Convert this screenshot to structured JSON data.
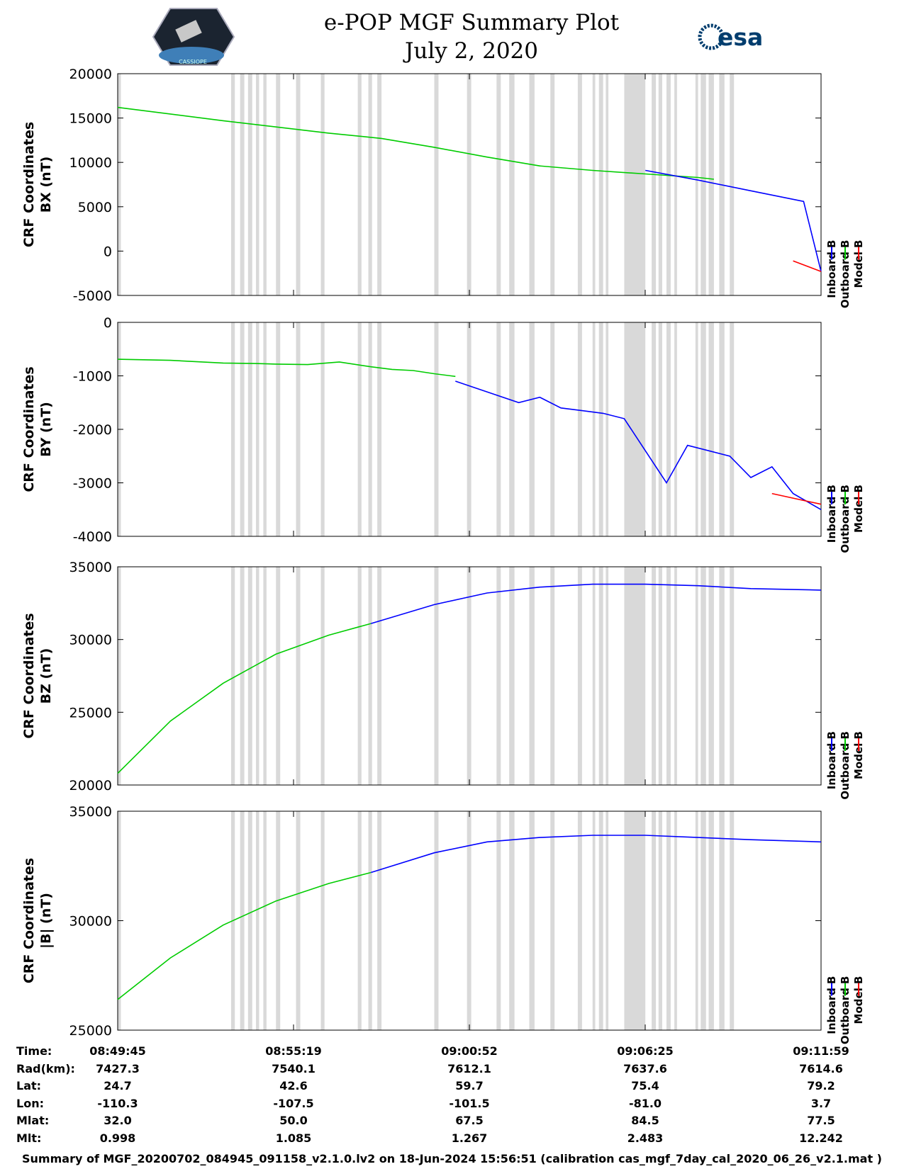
{
  "header": {
    "title": "e-POP MGF Summary Plot",
    "date": "July 2, 2020",
    "logo_right": "esa",
    "logo_left": "CASSIOPE"
  },
  "legend": {
    "items": [
      {
        "name": "Inboard B",
        "color": "#0000ff"
      },
      {
        "name": "Outboard B",
        "color": "#00cc00"
      },
      {
        "name": "Model B",
        "color": "#ff0000"
      }
    ]
  },
  "chart_data": [
    {
      "type": "line",
      "id": "bx",
      "ylabel": "CRF Coordinates",
      "ylabel2": "BX (nT)",
      "ylim": [
        -5000,
        20000
      ],
      "yticks": [
        20000,
        15000,
        10000,
        5000,
        0,
        -5000
      ],
      "xlim": [
        0,
        1333
      ],
      "series": [
        {
          "name": "Outboard B",
          "color": "#00cc00",
          "x": [
            0,
            200,
            400,
            500,
            600,
            700,
            800,
            900,
            1000,
            1050,
            1100,
            1130
          ],
          "y": [
            16200,
            14700,
            13300,
            12700,
            11700,
            10600,
            9600,
            9100,
            8700,
            8500,
            8300,
            8100
          ]
        },
        {
          "name": "Inboard B",
          "color": "#0000ff",
          "x": [
            1000,
            1100,
            1200,
            1300,
            1333
          ],
          "y": [
            9100,
            8000,
            6800,
            5600,
            -2300
          ]
        },
        {
          "name": "Model B",
          "color": "#ff0000",
          "x": [
            1280,
            1333
          ],
          "y": [
            -1100,
            -2300
          ]
        }
      ]
    },
    {
      "type": "line",
      "id": "by",
      "ylabel": "CRF Coordinates",
      "ylabel2": "BY (nT)",
      "ylim": [
        -4000,
        0
      ],
      "yticks": [
        0,
        -1000,
        -2000,
        -3000,
        -4000
      ],
      "xlim": [
        0,
        1333
      ],
      "series": [
        {
          "name": "Outboard B",
          "color": "#00cc00",
          "x": [
            0,
            100,
            200,
            260,
            300,
            360,
            420,
            480,
            520,
            560,
            600,
            640
          ],
          "y": [
            -690,
            -710,
            -760,
            -770,
            -780,
            -790,
            -740,
            -830,
            -880,
            -900,
            -960,
            -1010
          ]
        },
        {
          "name": "Inboard B",
          "color": "#0000ff",
          "x": [
            640,
            700,
            760,
            800,
            840,
            880,
            920,
            960,
            1000,
            1040,
            1080,
            1120,
            1160,
            1200,
            1240,
            1280,
            1333
          ],
          "y": [
            -1100,
            -1300,
            -1500,
            -1400,
            -1600,
            -1650,
            -1700,
            -1800,
            -2400,
            -3000,
            -2300,
            -2400,
            -2500,
            -2900,
            -2700,
            -3200,
            -3500
          ]
        },
        {
          "name": "Model B",
          "color": "#ff0000",
          "x": [
            1240,
            1333
          ],
          "y": [
            -3200,
            -3400
          ]
        }
      ]
    },
    {
      "type": "line",
      "id": "bz",
      "ylabel": "CRF Coordinates",
      "ylabel2": "BZ (nT)",
      "ylim": [
        20000,
        35000
      ],
      "yticks": [
        35000,
        30000,
        25000,
        20000
      ],
      "xlim": [
        0,
        1333
      ],
      "series": [
        {
          "name": "Outboard B",
          "color": "#00cc00",
          "x": [
            0,
            100,
            200,
            300,
            400,
            480
          ],
          "y": [
            20800,
            24400,
            27000,
            29000,
            30300,
            31100
          ]
        },
        {
          "name": "Inboard B",
          "color": "#0000ff",
          "x": [
            480,
            600,
            700,
            800,
            900,
            1000,
            1100,
            1200,
            1333
          ],
          "y": [
            31100,
            32400,
            33200,
            33600,
            33800,
            33800,
            33700,
            33500,
            33400
          ]
        }
      ]
    },
    {
      "type": "line",
      "id": "bmag",
      "ylabel": "CRF Coordinates",
      "ylabel2": "|B| (nT)",
      "ylim": [
        25000,
        35000
      ],
      "yticks": [
        35000,
        30000,
        25000
      ],
      "xlim": [
        0,
        1333
      ],
      "series": [
        {
          "name": "Outboard B",
          "color": "#00cc00",
          "x": [
            0,
            100,
            200,
            300,
            400,
            480
          ],
          "y": [
            26400,
            28300,
            29800,
            30900,
            31700,
            32200
          ]
        },
        {
          "name": "Inboard B",
          "color": "#0000ff",
          "x": [
            480,
            600,
            700,
            800,
            900,
            1000,
            1100,
            1200,
            1333
          ],
          "y": [
            32200,
            33100,
            33600,
            33800,
            33900,
            33900,
            33800,
            33700,
            33600
          ]
        }
      ]
    }
  ],
  "gaps": [
    [
      0,
      6
    ],
    [
      215,
      222
    ],
    [
      232,
      240
    ],
    [
      247,
      255
    ],
    [
      262,
      268
    ],
    [
      276,
      282
    ],
    [
      300,
      308
    ],
    [
      338,
      346
    ],
    [
      385,
      392
    ],
    [
      455,
      462
    ],
    [
      475,
      482
    ],
    [
      492,
      500
    ],
    [
      600,
      608
    ],
    [
      662,
      670
    ],
    [
      718,
      726
    ],
    [
      742,
      752
    ],
    [
      780,
      790
    ],
    [
      820,
      828
    ],
    [
      872,
      880
    ],
    [
      900,
      905
    ],
    [
      912,
      920
    ],
    [
      925,
      930
    ],
    [
      960,
      1000
    ],
    [
      1012,
      1020
    ],
    [
      1025,
      1032
    ],
    [
      1040,
      1048
    ],
    [
      1055,
      1060
    ],
    [
      1095,
      1100
    ],
    [
      1105,
      1115
    ],
    [
      1120,
      1130
    ],
    [
      1140,
      1150
    ],
    [
      1160,
      1168
    ]
  ],
  "orbit_table": {
    "row_labels": [
      "Time:",
      "Rad(km):",
      "Lat:",
      "Lon:",
      "Mlat:",
      "Mlt:"
    ],
    "columns": [
      {
        "values": [
          "08:49:45",
          "7427.3",
          "24.7",
          "-110.3",
          "32.0",
          "0.998"
        ]
      },
      {
        "values": [
          "08:55:19",
          "7540.1",
          "42.6",
          "-107.5",
          "50.0",
          "1.085"
        ]
      },
      {
        "values": [
          "09:00:52",
          "7612.1",
          "59.7",
          "-101.5",
          "67.5",
          "1.267"
        ]
      },
      {
        "values": [
          "09:06:25",
          "7637.6",
          "75.4",
          "-81.0",
          "84.5",
          "2.483"
        ]
      },
      {
        "values": [
          "09:11:59",
          "7614.6",
          "79.2",
          "3.7",
          "77.5",
          "12.242"
        ]
      }
    ]
  },
  "footer": "Summary of MGF_20200702_084945_091158_v2.1.0.lv2 on 18-Jun-2024 15:56:51 (calibration cas_mgf_7day_cal_2020_06_26_v2.1.mat )"
}
